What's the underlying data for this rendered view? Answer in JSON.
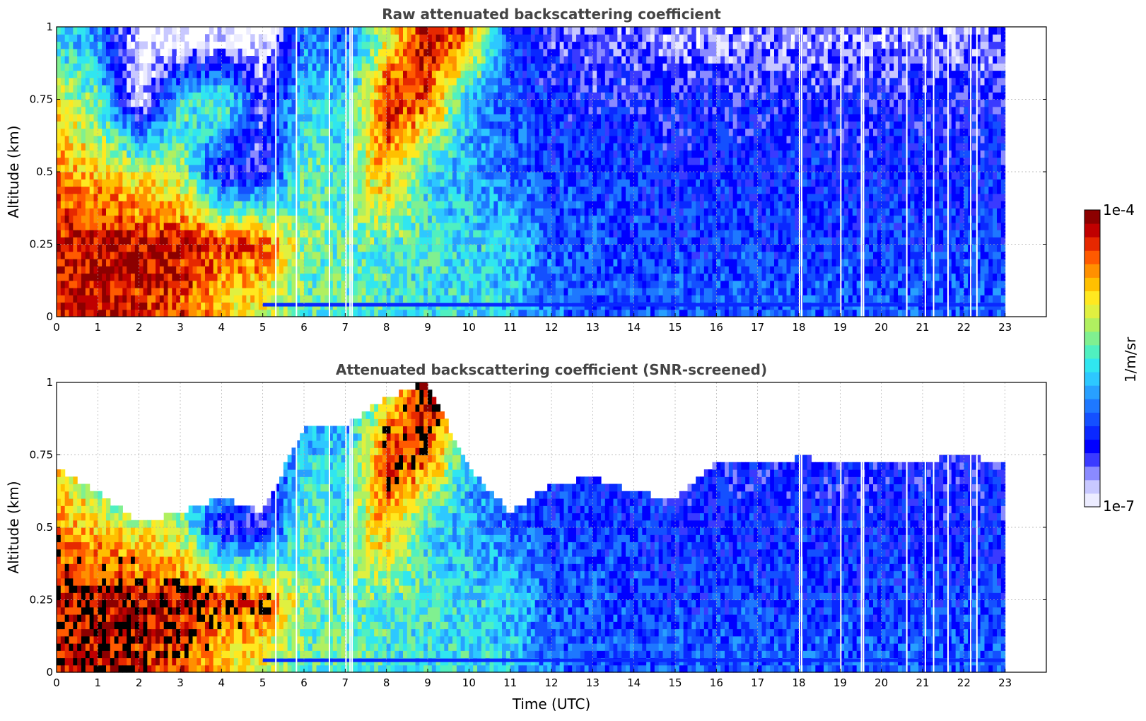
{
  "chart_data": [
    {
      "type": "heatmap",
      "title": "Raw attenuated backscattering coefficient",
      "xlabel": "",
      "ylabel": "Altitude (km)",
      "xlim": [
        0,
        24
      ],
      "ylim": [
        0,
        1
      ],
      "xticks": [
        "0",
        "1",
        "2",
        "3",
        "4",
        "5",
        "6",
        "7",
        "8",
        "9",
        "10",
        "11",
        "12",
        "13",
        "14",
        "15",
        "16",
        "17",
        "18",
        "19",
        "20",
        "21",
        "22",
        "23"
      ],
      "yticks": [
        "0",
        "0.25",
        "0.5",
        "0.75",
        "1"
      ],
      "grid": true,
      "data_end_hour": 23,
      "colorscale": "log",
      "colorbar_range": [
        1e-07,
        0.0001
      ],
      "ground_layer_altitude_km": 0.04,
      "sampled_log10_values": {
        "x_hours": [
          0,
          1,
          2,
          3,
          4,
          5,
          6,
          7,
          8,
          9,
          10,
          11,
          12,
          13,
          14,
          15,
          16,
          17,
          18,
          19,
          20,
          21,
          22,
          23
        ],
        "z_km": [
          0.05,
          0.25,
          0.5,
          0.75,
          0.95
        ],
        "values": [
          [
            -4.2,
            -4.2,
            -4.3,
            -4.4,
            -4.8,
            -5.0,
            -5.4,
            -5.4,
            -5.5,
            -5.6,
            -5.6,
            -5.7,
            -6.0,
            -6.1,
            -6.1,
            -6.1,
            -6.1,
            -6.1,
            -6.1,
            -6.1,
            -6.1,
            -6.1,
            -6.1,
            -6.1
          ],
          [
            -4.3,
            -4.2,
            -4.2,
            -4.2,
            -4.4,
            -4.4,
            -5.3,
            -5.4,
            -5.4,
            -5.5,
            -5.6,
            -5.7,
            -6.1,
            -6.1,
            -6.2,
            -6.2,
            -6.2,
            -6.2,
            -6.2,
            -6.2,
            -6.2,
            -6.2,
            -6.2,
            -6.2
          ],
          [
            -4.6,
            -4.8,
            -5.0,
            -5.2,
            -6.5,
            -6.5,
            -5.4,
            -5.5,
            -4.6,
            -5.6,
            -5.8,
            -6.0,
            -6.2,
            -6.2,
            -6.2,
            -6.3,
            -6.3,
            -6.3,
            -6.3,
            -6.3,
            -6.3,
            -6.3,
            -6.3,
            -6.3
          ],
          [
            -5.0,
            -5.4,
            -7.0,
            -5.6,
            -5.3,
            -6.5,
            -5.6,
            -5.7,
            -4.3,
            -4.4,
            -5.8,
            -6.1,
            -6.3,
            -6.4,
            -6.4,
            -6.4,
            -6.4,
            -6.4,
            -6.4,
            -6.4,
            -6.4,
            -6.4,
            -6.4,
            -6.4
          ],
          [
            -5.6,
            -5.9,
            -7.0,
            -7.0,
            -7.0,
            -7.0,
            -6.0,
            -6.1,
            -5.0,
            -4.2,
            -4.6,
            -6.3,
            -6.5,
            -6.6,
            -6.6,
            -6.7,
            -6.7,
            -6.7,
            -6.7,
            -6.7,
            -6.7,
            -6.7,
            -6.7,
            -6.7
          ]
        ]
      },
      "missing_profile_hours": [
        5.3,
        5.8,
        6.6,
        7.0,
        7.1,
        7.15,
        18.0,
        18.05,
        19.0,
        19.5,
        19.55,
        20.6,
        21.05,
        21.25,
        21.6,
        22.15,
        22.3
      ]
    },
    {
      "type": "heatmap",
      "title": "Attenuated backscattering coefficient (SNR-screened)",
      "xlabel": "Time (UTC)",
      "ylabel": "Altitude (km)",
      "xlim": [
        0,
        24
      ],
      "ylim": [
        0,
        1
      ],
      "xticks": [
        "0",
        "1",
        "2",
        "3",
        "4",
        "5",
        "6",
        "7",
        "8",
        "9",
        "10",
        "11",
        "12",
        "13",
        "14",
        "15",
        "16",
        "17",
        "18",
        "19",
        "20",
        "21",
        "22",
        "23"
      ],
      "yticks": [
        "0",
        "0.25",
        "0.5",
        "0.75",
        "1"
      ],
      "grid": true,
      "data_end_hour": 23,
      "colorscale": "log",
      "colorbar_range": [
        1e-07,
        0.0001
      ],
      "ground_layer_altitude_km": 0.04,
      "screened_top_km": {
        "x_hours": [
          0,
          1,
          2,
          3,
          4,
          5,
          6,
          7,
          8,
          9,
          10,
          11,
          12,
          13,
          14,
          15,
          16,
          17,
          18,
          19,
          20,
          21,
          22,
          23
        ],
        "top_km": [
          0.7,
          0.62,
          0.52,
          0.55,
          0.6,
          0.55,
          0.85,
          0.85,
          0.95,
          1.0,
          0.7,
          0.55,
          0.65,
          0.67,
          0.62,
          0.6,
          0.73,
          0.72,
          0.74,
          0.73,
          0.72,
          0.73,
          0.75,
          0.72
        ]
      },
      "missing_profile_hours": [
        5.3,
        5.8,
        6.6,
        7.0,
        7.1,
        7.15,
        18.0,
        18.05,
        19.0,
        19.5,
        19.55,
        20.6,
        21.05,
        21.25,
        21.6,
        22.15,
        22.3
      ]
    }
  ],
  "colorbar": {
    "label": "1/m/sr",
    "max_label": "1e-4",
    "min_label": "1e-7",
    "colors": [
      "#ececff",
      "#c8c8ff",
      "#8a8aff",
      "#3a3aff",
      "#0000ff",
      "#0a28ff",
      "#1450ff",
      "#1e78ff",
      "#28a0ff",
      "#2dc8ff",
      "#30e6f0",
      "#50f0c0",
      "#80f090",
      "#b0f060",
      "#e0f040",
      "#ffe820",
      "#ffc000",
      "#ff9000",
      "#ff5a00",
      "#e62800",
      "#c00000",
      "#8c0000"
    ]
  }
}
